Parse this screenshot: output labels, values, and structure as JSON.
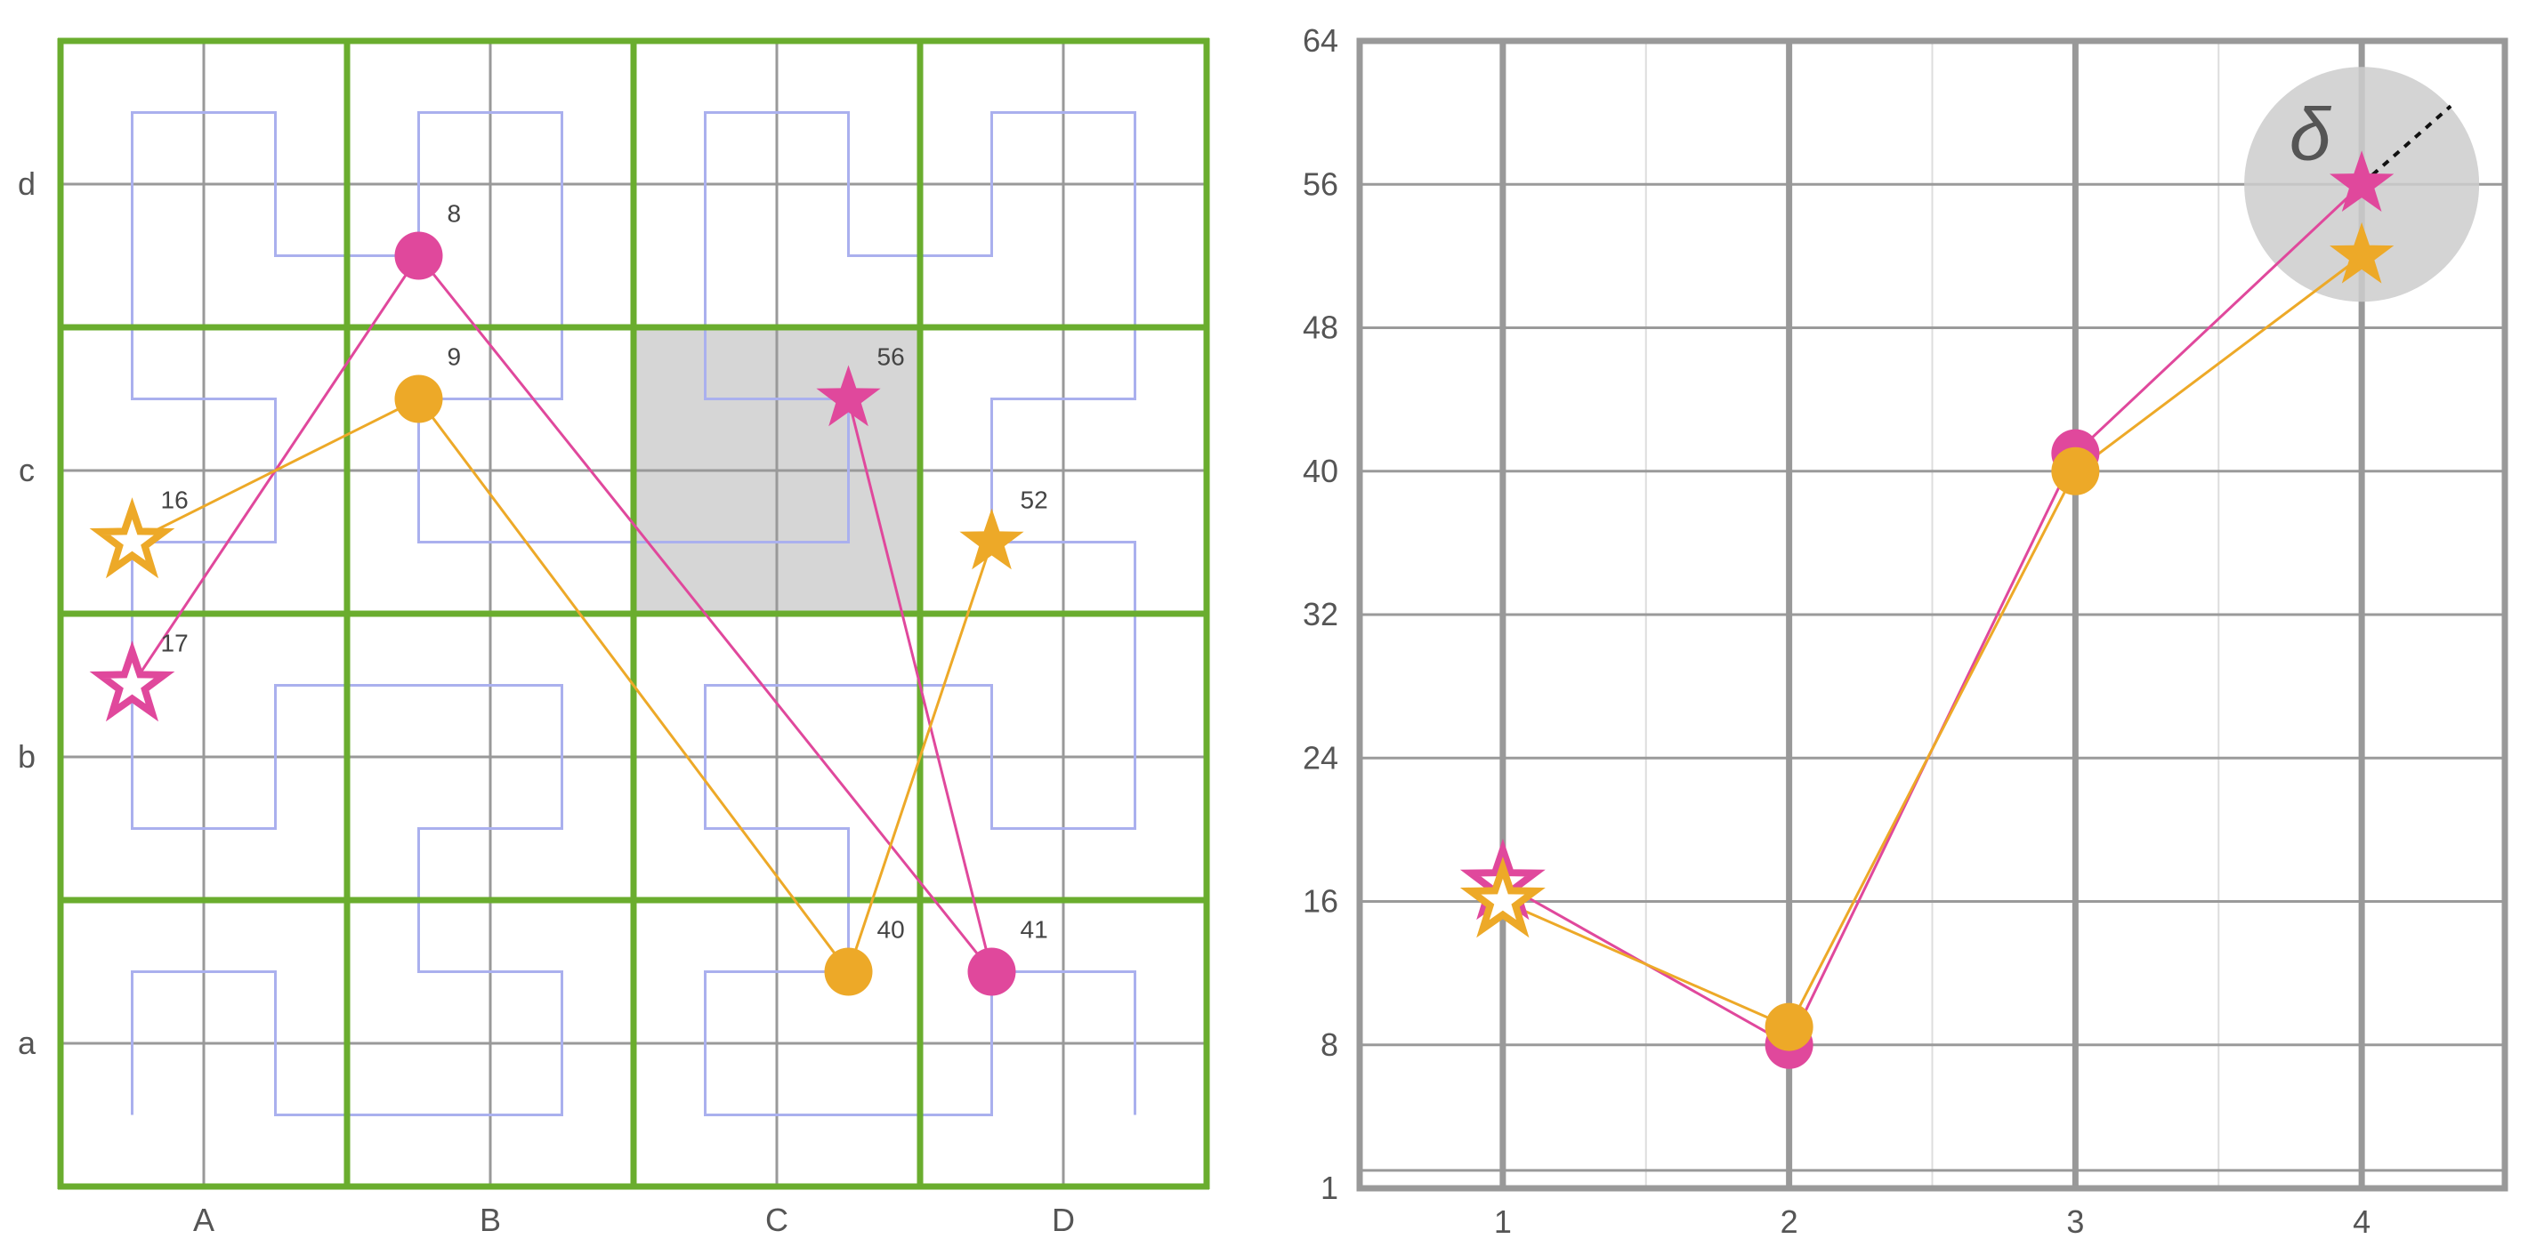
{
  "chart_data": [
    {
      "type": "grid-path",
      "columns": [
        "A",
        "B",
        "C",
        "D"
      ],
      "rows": [
        "a",
        "b",
        "c",
        "d"
      ],
      "highlighted_cell": "Cc",
      "path_color": "#aab0ee",
      "grid_color": "#6aad2e",
      "series": [
        {
          "color": "#e0489c",
          "points": [
            {
              "x": 0.25,
              "y": 1.75,
              "label": "17",
              "marker": "star-outline"
            },
            {
              "x": 1.25,
              "y": 3.25,
              "label": "8",
              "marker": "circle"
            },
            {
              "x": 3.25,
              "y": 0.75,
              "label": "41",
              "marker": "circle"
            },
            {
              "x": 2.75,
              "y": 2.75,
              "label": "56",
              "marker": "star"
            }
          ]
        },
        {
          "color": "#eda928",
          "points": [
            {
              "x": 0.25,
              "y": 2.25,
              "label": "16",
              "marker": "star-outline"
            },
            {
              "x": 1.25,
              "y": 2.75,
              "label": "9",
              "marker": "circle"
            },
            {
              "x": 2.75,
              "y": 0.75,
              "label": "40",
              "marker": "circle"
            },
            {
              "x": 3.25,
              "y": 2.25,
              "label": "52",
              "marker": "star"
            }
          ]
        }
      ]
    },
    {
      "type": "line",
      "x": [
        1,
        2,
        3,
        4
      ],
      "xticks": [
        "1",
        "2",
        "3",
        "4"
      ],
      "yticks": [
        "1",
        "8",
        "16",
        "24",
        "32",
        "40",
        "48",
        "56",
        "64"
      ],
      "xlim": [
        0.5,
        4.5
      ],
      "ylim": [
        0,
        64
      ],
      "annotation": "δ",
      "series": [
        {
          "color": "#e0489c",
          "values": [
            17,
            8,
            41,
            56
          ],
          "markers": [
            "star-outline",
            "circle",
            "circle",
            "star"
          ]
        },
        {
          "color": "#eda928",
          "values": [
            16,
            9,
            40,
            52
          ],
          "markers": [
            "star-outline",
            "circle",
            "circle",
            "star"
          ]
        }
      ]
    }
  ]
}
